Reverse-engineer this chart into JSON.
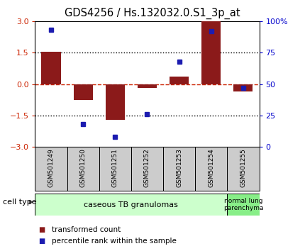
{
  "title": "GDS4256 / Hs.132032.0.S1_3p_at",
  "samples": [
    "GSM501249",
    "GSM501250",
    "GSM501251",
    "GSM501252",
    "GSM501253",
    "GSM501254",
    "GSM501255"
  ],
  "transformed_count": [
    1.55,
    -0.75,
    -1.7,
    -0.18,
    0.35,
    3.0,
    -0.35
  ],
  "percentile_rank": [
    93,
    18,
    8,
    26,
    68,
    92,
    47
  ],
  "ylim_left": [
    -3,
    3
  ],
  "ylim_right": [
    0,
    100
  ],
  "yticks_left": [
    -3,
    -1.5,
    0,
    1.5,
    3
  ],
  "ytick_labels_right": [
    "0",
    "25",
    "50",
    "75",
    "100%"
  ],
  "yticks_right": [
    0,
    25,
    50,
    75,
    100
  ],
  "bar_color": "#8B1A1A",
  "dot_color": "#1C1CB0",
  "zero_line_color": "#CC2200",
  "dotted_line_color": "#000000",
  "group1_samples": [
    0,
    1,
    2,
    3,
    4,
    5
  ],
  "group2_samples": [
    6
  ],
  "group1_label": "caseous TB granulomas",
  "group2_label": "normal lung\nparenchyma",
  "group1_color": "#CCFFCC",
  "group2_color": "#88EE88",
  "sample_box_color": "#CCCCCC",
  "cell_type_label": "cell type",
  "legend_bar_label": "transformed count",
  "legend_dot_label": "percentile rank within the sample",
  "bar_width": 0.6,
  "ax_bg_color": "#FFFFFF",
  "title_fontsize": 10.5,
  "axis_tick_color_left": "#CC2200",
  "axis_tick_color_right": "#0000CC"
}
